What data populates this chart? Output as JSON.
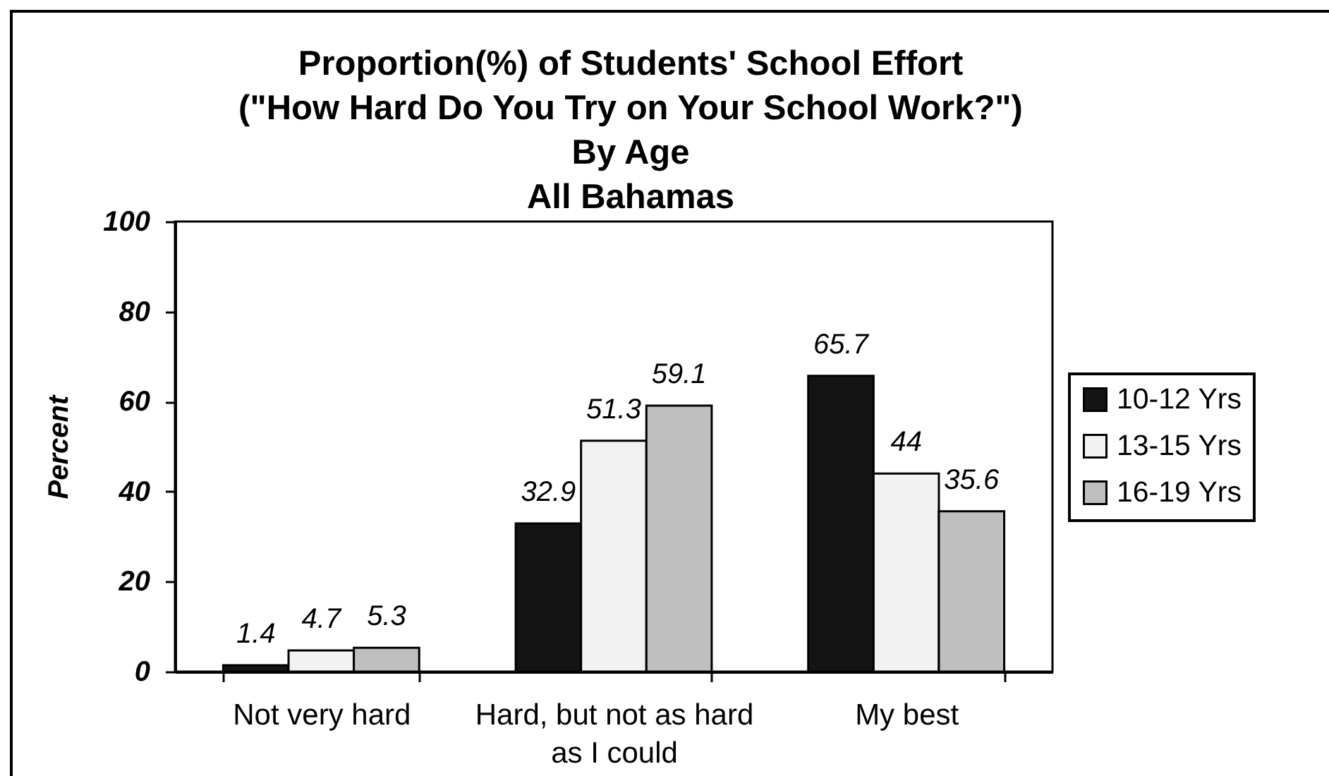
{
  "chart_data": {
    "type": "bar",
    "title": "Proportion(%) of Students' School Effort\n(\"How Hard Do You Try on Your School Work?\")\nBy Age\nAll Bahamas",
    "ylabel": "Percent",
    "categories": [
      "Not very hard",
      "Hard, but not as hard as I could",
      "My best"
    ],
    "series": [
      {
        "name": "10-12 Yrs",
        "color": "#141414",
        "values": [
          1.4,
          32.9,
          65.7
        ]
      },
      {
        "name": "13-15 Yrs",
        "color": "#f2f2f2",
        "values": [
          4.7,
          51.3,
          44
        ]
      },
      {
        "name": "16-19 Yrs",
        "color": "#bfbfbf",
        "values": [
          5.3,
          59.1,
          35.6
        ]
      }
    ],
    "ylim": [
      0,
      100
    ],
    "yticks": [
      0,
      20,
      40,
      60,
      80,
      100
    ],
    "data_labels": true,
    "legend": "right",
    "grid": false
  }
}
